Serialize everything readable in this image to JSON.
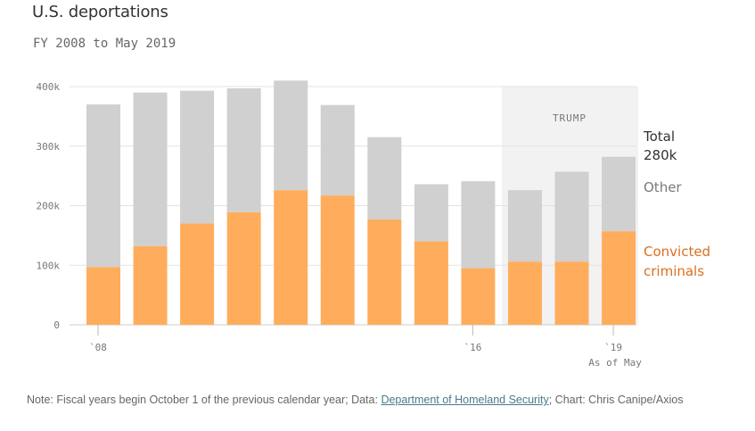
{
  "header": {
    "title": "U.S. deportations",
    "subtitle": "FY 2008 to May 2019"
  },
  "legend": {
    "total_label": "Total",
    "total_value": "280k",
    "other_label": "Other",
    "convicted_label": "Convicted criminals"
  },
  "annotation": {
    "trump_label": "TRUMP"
  },
  "note": {
    "prefix": "Note: Fiscal years begin October 1 of the previous calendar year; Data: ",
    "link": "Department of Homeland Security",
    "suffix": "; Chart: Chris Canipe/Axios"
  },
  "colors": {
    "convicted": "#ffad5c",
    "other": "#d0d0d0",
    "shade": "#f2f2f2",
    "grid": "#e3e3e3"
  },
  "chart_data": {
    "type": "bar",
    "stacked": true,
    "categories": [
      "2008",
      "2009",
      "2010",
      "2011",
      "2012",
      "2013",
      "2014",
      "2015",
      "2016",
      "2017",
      "2018",
      "2019"
    ],
    "series": [
      {
        "name": "Convicted criminals",
        "values": [
          97000,
          132000,
          170000,
          189000,
          226000,
          217000,
          177000,
          140000,
          95000,
          106000,
          106000,
          157000
        ]
      },
      {
        "name": "Other",
        "values": [
          273000,
          258000,
          223000,
          208000,
          184000,
          152000,
          138000,
          96000,
          146000,
          120000,
          151000,
          125000
        ]
      }
    ],
    "totals": [
      370000,
      390000,
      393000,
      397000,
      410000,
      369000,
      315000,
      236000,
      241000,
      226000,
      257000,
      282000
    ],
    "ylim": [
      0,
      400000
    ],
    "yticks": [
      "0",
      "100k",
      "200k",
      "300k",
      "400k"
    ],
    "xticks": [
      "`08",
      "`16",
      "`19"
    ],
    "xtick_sub": "As of May",
    "shaded_range_categories": [
      "2017",
      "2019"
    ],
    "grid": true
  }
}
